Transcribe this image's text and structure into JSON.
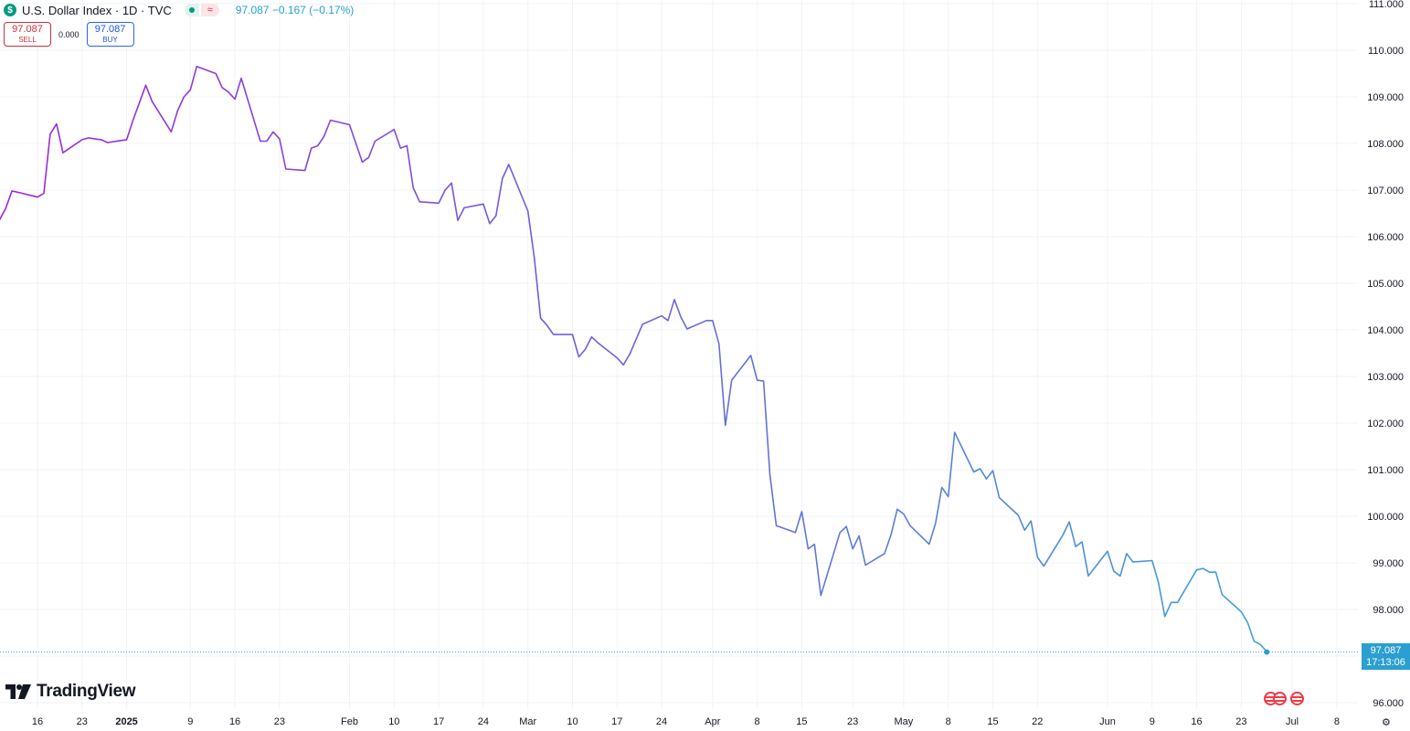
{
  "header": {
    "symbol_icon": "$",
    "title": "U.S. Dollar Index · 1D · TVC",
    "market_status_open_icon": "green-dot-icon",
    "market_status_wave": "≈",
    "last_value": "97.087",
    "change": "−0.167",
    "change_pct": "(−0.17%)"
  },
  "trade": {
    "sell_price": "97.087",
    "sell_label": "SELL",
    "spread": "0.000",
    "buy_price": "97.087",
    "buy_label": "BUY"
  },
  "brand": {
    "name": "TradingView"
  },
  "last_price_tag": {
    "value": "97.087",
    "countdown": "17:13:06"
  },
  "colors": {
    "line_start": "#9c27e0",
    "line_end": "#3fa3d6",
    "grid": "#f0f3fa",
    "axis_text": "#131722",
    "price_tag": "#2a9fd0"
  },
  "chart_data": {
    "type": "line",
    "title": "",
    "xlabel": "",
    "ylabel": "",
    "ylim": [
      96,
      111
    ],
    "grid": true,
    "y_ticks": [
      "96.000",
      "97.000",
      "98.000",
      "99.000",
      "100.000",
      "101.000",
      "102.000",
      "103.000",
      "104.000",
      "105.000",
      "106.000",
      "107.000",
      "108.000",
      "109.000",
      "110.000",
      "111.000"
    ],
    "x_ticks": [
      {
        "label": "16",
        "date": "2024-12-16",
        "bold": false
      },
      {
        "label": "23",
        "date": "2024-12-23",
        "bold": false
      },
      {
        "label": "2025",
        "date": "2024-12-30",
        "bold": true
      },
      {
        "label": "9",
        "date": "2025-01-09",
        "bold": false
      },
      {
        "label": "16",
        "date": "2025-01-16",
        "bold": false
      },
      {
        "label": "23",
        "date": "2025-01-23",
        "bold": false
      },
      {
        "label": "Feb",
        "date": "2025-02-03",
        "bold": false
      },
      {
        "label": "10",
        "date": "2025-02-10",
        "bold": false
      },
      {
        "label": "17",
        "date": "2025-02-17",
        "bold": false
      },
      {
        "label": "24",
        "date": "2025-02-24",
        "bold": false
      },
      {
        "label": "Mar",
        "date": "2025-03-03",
        "bold": false
      },
      {
        "label": "10",
        "date": "2025-03-10",
        "bold": false
      },
      {
        "label": "17",
        "date": "2025-03-17",
        "bold": false
      },
      {
        "label": "24",
        "date": "2025-03-24",
        "bold": false
      },
      {
        "label": "Apr",
        "date": "2025-04-01",
        "bold": false
      },
      {
        "label": "8",
        "date": "2025-04-08",
        "bold": false
      },
      {
        "label": "15",
        "date": "2025-04-15",
        "bold": false
      },
      {
        "label": "23",
        "date": "2025-04-23",
        "bold": false
      },
      {
        "label": "May",
        "date": "2025-05-01",
        "bold": false
      },
      {
        "label": "8",
        "date": "2025-05-08",
        "bold": false
      },
      {
        "label": "15",
        "date": "2025-05-15",
        "bold": false
      },
      {
        "label": "22",
        "date": "2025-05-22",
        "bold": false
      },
      {
        "label": "Jun",
        "date": "2025-06-02",
        "bold": false
      },
      {
        "label": "9",
        "date": "2025-06-09",
        "bold": false
      },
      {
        "label": "16",
        "date": "2025-06-16",
        "bold": false
      },
      {
        "label": "23",
        "date": "2025-06-23",
        "bold": false
      },
      {
        "label": "Jul",
        "date": "2025-07-01",
        "bold": false
      },
      {
        "label": "8",
        "date": "2025-07-08",
        "bold": false
      }
    ],
    "series": [
      {
        "values": [
          [
            "2024-12-10",
            106.35
          ],
          [
            "2024-12-11",
            106.6
          ],
          [
            "2024-12-12",
            106.98
          ],
          [
            "2024-12-13",
            106.95
          ],
          [
            "2024-12-16",
            106.85
          ],
          [
            "2024-12-17",
            106.93
          ],
          [
            "2024-12-18",
            108.2
          ],
          [
            "2024-12-19",
            108.42
          ],
          [
            "2024-12-20",
            107.8
          ],
          [
            "2024-12-23",
            108.08
          ],
          [
            "2024-12-24",
            108.12
          ],
          [
            "2024-12-26",
            108.08
          ],
          [
            "2024-12-27",
            108.02
          ],
          [
            "2024-12-30",
            108.08
          ],
          [
            "2024-12-31",
            108.5
          ],
          [
            "2025-01-02",
            109.25
          ],
          [
            "2025-01-03",
            108.9
          ],
          [
            "2025-01-06",
            108.25
          ],
          [
            "2025-01-07",
            108.7
          ],
          [
            "2025-01-08",
            109.0
          ],
          [
            "2025-01-09",
            109.15
          ],
          [
            "2025-01-10",
            109.65
          ],
          [
            "2025-01-13",
            109.5
          ],
          [
            "2025-01-14",
            109.2
          ],
          [
            "2025-01-15",
            109.1
          ],
          [
            "2025-01-16",
            108.95
          ],
          [
            "2025-01-17",
            109.4
          ],
          [
            "2025-01-20",
            108.05
          ],
          [
            "2025-01-21",
            108.05
          ],
          [
            "2025-01-22",
            108.25
          ],
          [
            "2025-01-23",
            108.1
          ],
          [
            "2025-01-24",
            107.45
          ],
          [
            "2025-01-27",
            107.42
          ],
          [
            "2025-01-28",
            107.9
          ],
          [
            "2025-01-29",
            107.95
          ],
          [
            "2025-01-30",
            108.15
          ],
          [
            "2025-01-31",
            108.5
          ],
          [
            "2025-02-03",
            108.4
          ],
          [
            "2025-02-04",
            108.0
          ],
          [
            "2025-02-05",
            107.6
          ],
          [
            "2025-02-06",
            107.7
          ],
          [
            "2025-02-07",
            108.05
          ],
          [
            "2025-02-10",
            108.3
          ],
          [
            "2025-02-11",
            107.9
          ],
          [
            "2025-02-12",
            107.95
          ],
          [
            "2025-02-13",
            107.05
          ],
          [
            "2025-02-14",
            106.75
          ],
          [
            "2025-02-17",
            106.72
          ],
          [
            "2025-02-18",
            107.0
          ],
          [
            "2025-02-19",
            107.15
          ],
          [
            "2025-02-20",
            106.35
          ],
          [
            "2025-02-21",
            106.62
          ],
          [
            "2025-02-24",
            106.7
          ],
          [
            "2025-02-25",
            106.28
          ],
          [
            "2025-02-26",
            106.45
          ],
          [
            "2025-02-27",
            107.25
          ],
          [
            "2025-02-28",
            107.55
          ],
          [
            "2025-03-03",
            106.55
          ],
          [
            "2025-03-04",
            105.55
          ],
          [
            "2025-03-05",
            104.25
          ],
          [
            "2025-03-06",
            104.1
          ],
          [
            "2025-03-07",
            103.9
          ],
          [
            "2025-03-10",
            103.9
          ],
          [
            "2025-03-11",
            103.42
          ],
          [
            "2025-03-12",
            103.58
          ],
          [
            "2025-03-13",
            103.85
          ],
          [
            "2025-03-14",
            103.72
          ],
          [
            "2025-03-17",
            103.4
          ],
          [
            "2025-03-18",
            103.25
          ],
          [
            "2025-03-19",
            103.48
          ],
          [
            "2025-03-20",
            103.8
          ],
          [
            "2025-03-21",
            104.12
          ],
          [
            "2025-03-24",
            104.3
          ],
          [
            "2025-03-25",
            104.2
          ],
          [
            "2025-03-26",
            104.65
          ],
          [
            "2025-03-27",
            104.28
          ],
          [
            "2025-03-28",
            104.02
          ],
          [
            "2025-03-31",
            104.2
          ],
          [
            "2025-04-01",
            104.2
          ],
          [
            "2025-04-02",
            103.7
          ],
          [
            "2025-04-03",
            101.95
          ],
          [
            "2025-04-04",
            102.92
          ],
          [
            "2025-04-07",
            103.45
          ],
          [
            "2025-04-08",
            102.92
          ],
          [
            "2025-04-09",
            102.9
          ],
          [
            "2025-04-10",
            100.9
          ],
          [
            "2025-04-11",
            99.8
          ],
          [
            "2025-04-14",
            99.65
          ],
          [
            "2025-04-15",
            100.1
          ],
          [
            "2025-04-16",
            99.3
          ],
          [
            "2025-04-17",
            99.4
          ],
          [
            "2025-04-18",
            98.3
          ],
          [
            "2025-04-21",
            99.65
          ],
          [
            "2025-04-22",
            99.78
          ],
          [
            "2025-04-23",
            99.3
          ],
          [
            "2025-04-24",
            99.58
          ],
          [
            "2025-04-25",
            98.95
          ],
          [
            "2025-04-28",
            99.2
          ],
          [
            "2025-04-29",
            99.6
          ],
          [
            "2025-04-30",
            100.15
          ],
          [
            "2025-05-01",
            100.05
          ],
          [
            "2025-05-02",
            99.8
          ],
          [
            "2025-05-05",
            99.4
          ],
          [
            "2025-05-06",
            99.85
          ],
          [
            "2025-05-07",
            100.62
          ],
          [
            "2025-05-08",
            100.42
          ],
          [
            "2025-05-09",
            101.8
          ],
          [
            "2025-05-12",
            100.95
          ],
          [
            "2025-05-13",
            101.02
          ],
          [
            "2025-05-14",
            100.8
          ],
          [
            "2025-05-15",
            100.98
          ],
          [
            "2025-05-16",
            100.4
          ],
          [
            "2025-05-19",
            100.02
          ],
          [
            "2025-05-20",
            99.7
          ],
          [
            "2025-05-21",
            99.9
          ],
          [
            "2025-05-22",
            99.12
          ],
          [
            "2025-05-23",
            98.93
          ],
          [
            "2025-05-26",
            99.6
          ],
          [
            "2025-05-27",
            99.88
          ],
          [
            "2025-05-28",
            99.35
          ],
          [
            "2025-05-29",
            99.45
          ],
          [
            "2025-05-30",
            98.72
          ],
          [
            "2025-06-02",
            99.25
          ],
          [
            "2025-06-03",
            98.82
          ],
          [
            "2025-06-04",
            98.72
          ],
          [
            "2025-06-05",
            99.2
          ],
          [
            "2025-06-06",
            99.02
          ],
          [
            "2025-06-09",
            99.05
          ],
          [
            "2025-06-10",
            98.58
          ],
          [
            "2025-06-11",
            97.85
          ],
          [
            "2025-06-12",
            98.15
          ],
          [
            "2025-06-13",
            98.15
          ],
          [
            "2025-06-16",
            98.85
          ],
          [
            "2025-06-17",
            98.88
          ],
          [
            "2025-06-18",
            98.8
          ],
          [
            "2025-06-19",
            98.8
          ],
          [
            "2025-06-20",
            98.32
          ],
          [
            "2025-06-23",
            97.95
          ],
          [
            "2025-06-24",
            97.72
          ],
          [
            "2025-06-25",
            97.32
          ],
          [
            "2025-06-26",
            97.25
          ],
          [
            "2025-06-27",
            97.1
          ]
        ]
      }
    ],
    "last_value": 97.087
  }
}
